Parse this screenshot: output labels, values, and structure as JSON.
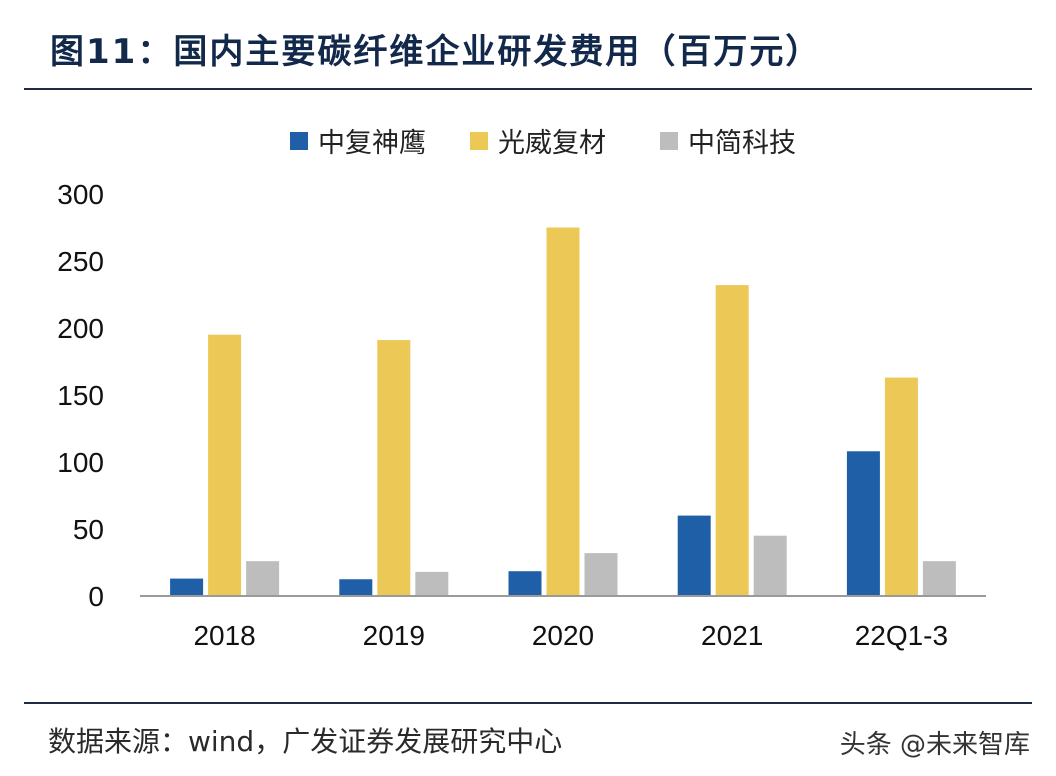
{
  "title": "图11：国内主要碳纤维企业研发费用（百万元）",
  "source": "数据来源：wind，广发证券发展研究中心",
  "watermark": "头条 @未来智库",
  "chart_data": {
    "type": "bar",
    "title": "国内主要碳纤维企业研发费用（百万元）",
    "xlabel": "",
    "ylabel": "",
    "ylim": [
      0,
      300
    ],
    "yticks": [
      0,
      50,
      100,
      150,
      200,
      250,
      300
    ],
    "categories": [
      "2018",
      "2019",
      "2020",
      "2021",
      "22Q1-3"
    ],
    "legend_position": "top",
    "series": [
      {
        "name": "中复神鹰",
        "color": "#1f5fa8",
        "values": [
          13,
          12.5,
          18.5,
          60,
          108
        ]
      },
      {
        "name": "光威复材",
        "color": "#ecc856",
        "values": [
          195,
          191,
          275,
          232,
          163
        ]
      },
      {
        "name": "中简科技",
        "color": "#bdbdbd",
        "values": [
          26,
          18,
          32,
          45,
          26
        ]
      }
    ]
  }
}
